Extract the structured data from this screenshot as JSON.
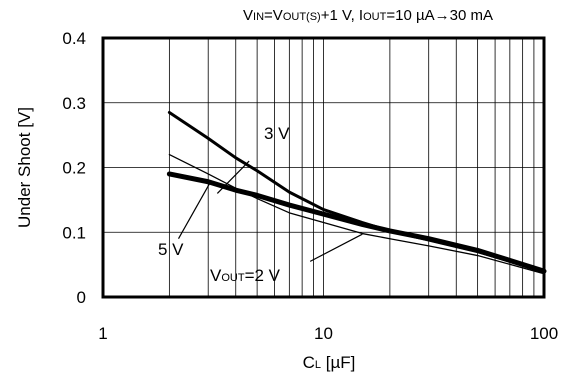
{
  "chart_data": {
    "type": "line",
    "title": {
      "parts": [
        {
          "t": "V"
        },
        {
          "t": "IN",
          "sub": true
        },
        {
          "t": "=V"
        },
        {
          "t": "OUT(S)",
          "sub": true
        },
        {
          "t": "+1 V, I"
        },
        {
          "t": "OUT",
          "sub": true
        },
        {
          "t": "=10 µA→30 mA"
        }
      ]
    },
    "xlabel": {
      "parts": [
        {
          "t": "C"
        },
        {
          "t": "L",
          "sub": true
        },
        {
          "t": " [µF]"
        }
      ]
    },
    "ylabel": "Under Shoot [V]",
    "x_scale": "log",
    "xlim": [
      1,
      100
    ],
    "ylim": [
      0,
      0.4
    ],
    "x_ticks": [
      1,
      10,
      100
    ],
    "x_tick_labels": [
      "1",
      "10",
      "100"
    ],
    "y_ticks": [
      0,
      0.1,
      0.2,
      0.3,
      0.4
    ],
    "y_tick_labels": [
      "0",
      "0.1",
      "0.2",
      "0.3",
      "0.4"
    ],
    "grid": true,
    "series": [
      {
        "name": "3 V",
        "x": [
          2,
          3,
          4,
          5,
          7,
          10,
          15,
          20,
          30,
          50,
          100
        ],
        "y": [
          0.285,
          0.245,
          0.215,
          0.195,
          0.162,
          0.135,
          0.115,
          0.102,
          0.088,
          0.07,
          0.04
        ],
        "stroke": 3
      },
      {
        "name": "5 V",
        "x": [
          2,
          3,
          4,
          5,
          7,
          10,
          15,
          20,
          30,
          50,
          100
        ],
        "y": [
          0.19,
          0.178,
          0.165,
          0.157,
          0.142,
          0.128,
          0.112,
          0.102,
          0.09,
          0.072,
          0.04
        ],
        "stroke": 5
      },
      {
        "name": "VOUT=2 V",
        "x": [
          2,
          3,
          4,
          5,
          7,
          10,
          15,
          20,
          30,
          50,
          100
        ],
        "y": [
          0.22,
          0.19,
          0.168,
          0.152,
          0.13,
          0.115,
          0.098,
          0.09,
          0.079,
          0.064,
          0.036
        ],
        "stroke": 1.3
      }
    ],
    "annotations": [
      {
        "series": "3 V",
        "parts": [
          {
            "t": "3 V"
          }
        ],
        "leader_from": [
          3.3,
          0.16
        ],
        "leader_to": [
          4.6,
          0.21
        ]
      },
      {
        "series": "5 V",
        "parts": [
          {
            "t": "5 V"
          }
        ],
        "leader_from": [
          2.2,
          0.09
        ],
        "leader_to": [
          3.1,
          0.18
        ]
      },
      {
        "series": "VOUT=2 V",
        "parts": [
          {
            "t": "V"
          },
          {
            "t": "OUT",
            "sub": true
          },
          {
            "t": "=2 V"
          }
        ],
        "leader_from": [
          8.7,
          0.055
        ],
        "leader_to": [
          15.0,
          0.097
        ]
      }
    ]
  }
}
